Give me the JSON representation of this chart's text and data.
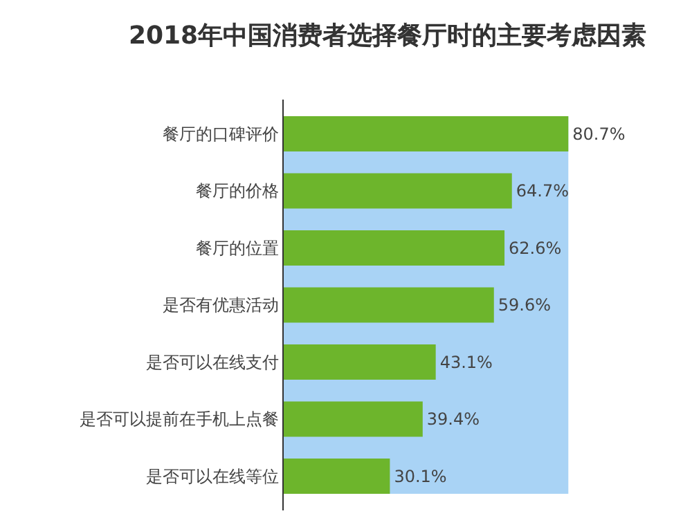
{
  "chart_data": {
    "type": "bar",
    "orientation": "horizontal",
    "title": "2018年中国消费者选择餐厅时的主要考虑因素",
    "categories": [
      "餐厅的口碑评价",
      "餐厅的价格",
      "餐厅的位置",
      "是否有优惠活动",
      "是否可以在线支付",
      "是否可以提前在手机上点餐",
      "是否可以在线等位"
    ],
    "values": [
      80.7,
      64.7,
      62.6,
      59.6,
      43.1,
      39.4,
      30.1
    ],
    "value_labels": [
      "80.7%",
      "64.7%",
      "62.6%",
      "59.6%",
      "43.1%",
      "39.4%",
      "30.1%"
    ],
    "color": "#6db52c",
    "bands": [
      {
        "axis": "x",
        "from": 0,
        "to": 80.7,
        "color": "#a9d3f5"
      }
    ]
  }
}
